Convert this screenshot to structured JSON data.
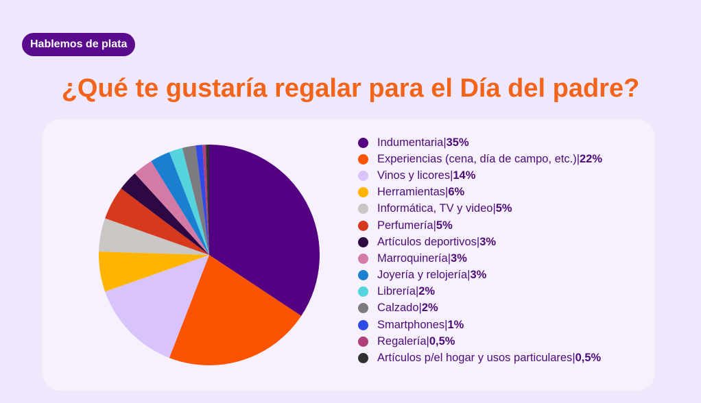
{
  "badge": "Hablemos de plata",
  "title": "¿Qué te gustaría regalar para el Día del padre?",
  "chart_data": {
    "type": "pie",
    "title": "¿Qué te gustaría regalar para el Día del padre?",
    "legend_position": "right",
    "slices": [
      {
        "label": "Indumentaria",
        "display": "35%",
        "value": 35,
        "color": "#540083"
      },
      {
        "label": "Experiencias (cena, día de campo, etc.)",
        "display": "22%",
        "value": 22,
        "color": "#fa5400"
      },
      {
        "label": "Vinos y licores",
        "display": "14%",
        "value": 14,
        "color": "#d9c3fb"
      },
      {
        "label": "Herramientas",
        "display": "6%",
        "value": 6,
        "color": "#ffb500"
      },
      {
        "label": "Informática, TV y video",
        "display": "5%",
        "value": 5,
        "color": "#c9c6c3"
      },
      {
        "label": "Perfumería",
        "display": "5%",
        "value": 5,
        "color": "#d7391c"
      },
      {
        "label": "Artículos deportivos",
        "display": "3%",
        "value": 3,
        "color": "#2e0842"
      },
      {
        "label": "Marroquinería",
        "display": "3%",
        "value": 3,
        "color": "#d47aa6"
      },
      {
        "label": "Joyería y relojería",
        "display": "3%",
        "value": 3,
        "color": "#1a7ed1"
      },
      {
        "label": "Librería",
        "display": "2%",
        "value": 2,
        "color": "#55d4dd"
      },
      {
        "label": "Calzado",
        "display": "2%",
        "value": 2,
        "color": "#7d7b80"
      },
      {
        "label": "Smartphones",
        "display": "1%",
        "value": 1,
        "color": "#2f4ae6"
      },
      {
        "label": "Regalería",
        "display": "0,5%",
        "value": 0.5,
        "color": "#b0407a"
      },
      {
        "label": "Artículos p/el hogar y usos particulares",
        "display": "0,5%",
        "value": 0.5,
        "color": "#313131"
      }
    ]
  }
}
